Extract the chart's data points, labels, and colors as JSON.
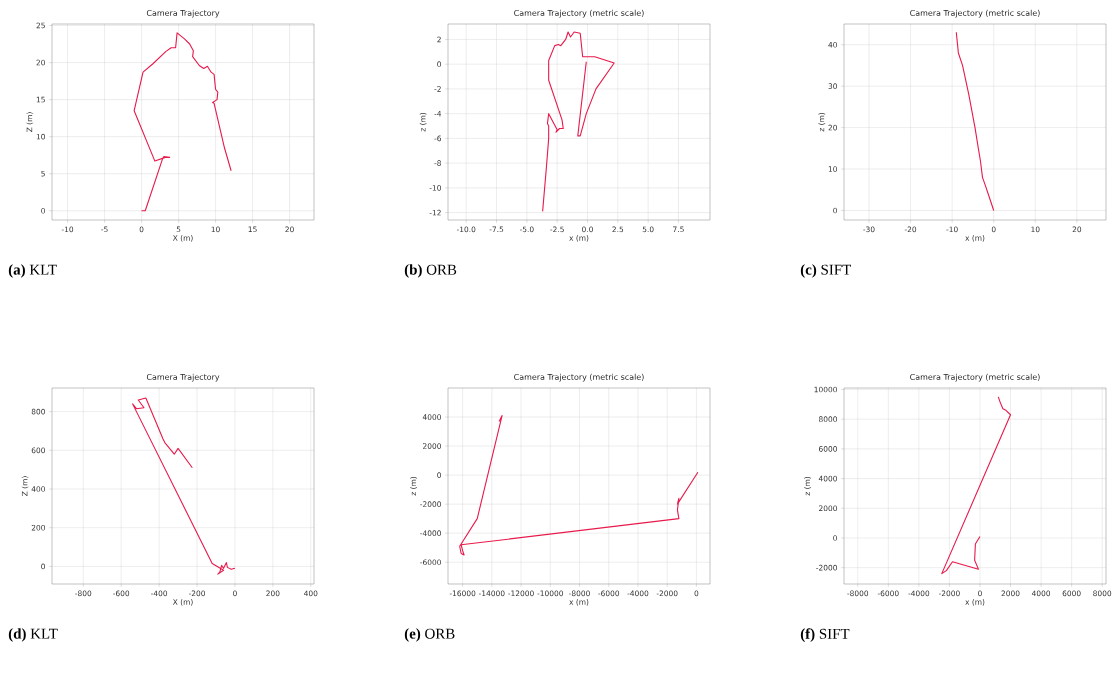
{
  "chart_data": [
    {
      "type": "line",
      "title": "Camera Trajectory",
      "xlabel": "X (m)",
      "ylabel": "Z (m)",
      "annotations": [
        "**(a)** KLT"
      ],
      "grid": true,
      "xlim": [
        -12.1,
        23.3
      ],
      "ylim": [
        -1.25,
        25.2
      ],
      "xticks": [
        -10,
        -5,
        0,
        5,
        10,
        15,
        20
      ],
      "yticks": [
        0,
        5,
        10,
        15,
        20,
        25
      ],
      "series": [
        {
          "color": "#e8194b",
          "x": [
            0,
            0.5,
            2.8,
            3.0,
            3.8,
            3.2,
            1.8,
            -1.0,
            0.2,
            1.5,
            3.3,
            4.0,
            4.6,
            4.8,
            5.8,
            6.5,
            7.0,
            6.9,
            7.8,
            8.4,
            8.9,
            9.4,
            9.8,
            10.0,
            10.3,
            10.2,
            9.6,
            9.8,
            11.2,
            12.1
          ],
          "values": [
            0,
            0,
            6.9,
            7.3,
            7.2,
            7.2,
            6.7,
            13.5,
            18.7,
            19.8,
            21.5,
            22.0,
            22.0,
            24.0,
            23.2,
            22.5,
            21.6,
            20.8,
            19.6,
            19.2,
            19.5,
            18.7,
            18.4,
            16.4,
            16.0,
            15.0,
            14.6,
            14.5,
            8.5,
            5.4
          ]
        }
      ]
    },
    {
      "type": "line",
      "title": "Camera Trajectory (metric scale)",
      "xlabel": "x (m)",
      "ylabel": "z (m)",
      "annotations": [
        "**(b)** ORB"
      ],
      "grid": true,
      "xlim": [
        -11.5,
        10.1
      ],
      "ylim": [
        -12.6,
        3.25
      ],
      "xticks": [
        {
          "value": -10,
          "label": "-10.0"
        },
        {
          "value": -7.5,
          "label": "-7.5"
        },
        {
          "value": -5,
          "label": "-5.0"
        },
        {
          "value": -2.5,
          "label": "-2.5"
        },
        {
          "value": 0,
          "label": "0.0"
        },
        {
          "value": 2.5,
          "label": "2.5"
        },
        {
          "value": 5,
          "label": "5.0"
        },
        {
          "value": 7.5,
          "label": "7.5"
        }
      ],
      "yticks": [
        -12,
        -10,
        -8,
        -6,
        -4,
        -2,
        0,
        2
      ],
      "series": [
        {
          "color": "#e8194b",
          "x": [
            -3.7,
            -3.4,
            -3.2,
            -3.2,
            -3.3,
            -3.2,
            -2.5,
            -2.6,
            -2.3,
            -2.0,
            -2.1,
            -3.2,
            -3.2,
            -2.7,
            -2.4,
            -2.2,
            -1.8,
            -1.6,
            -1.4,
            -1.1,
            -0.6,
            -0.4,
            0.6,
            2.2,
            0.7,
            -0.1,
            -0.6,
            -0.8,
            -0.1
          ],
          "values": [
            -11.9,
            -8.5,
            -6.0,
            -5.0,
            -4.8,
            -4.0,
            -5.3,
            -5.5,
            -5.2,
            -5.2,
            -4.5,
            -1.3,
            0.3,
            1.5,
            1.6,
            1.5,
            2.0,
            2.6,
            2.2,
            2.6,
            2.5,
            0.6,
            0.6,
            0.1,
            -2.0,
            -4.0,
            -5.8,
            -5.8,
            0.2
          ]
        }
      ]
    },
    {
      "type": "line",
      "title": "Camera Trajectory (metric scale)",
      "xlabel": "x (m)",
      "ylabel": "z (m)",
      "annotations": [
        "**(c)** SIFT"
      ],
      "grid": true,
      "xlim": [
        -36,
        27
      ],
      "ylim": [
        -2.3,
        45
      ],
      "xticks": [
        -30,
        -20,
        -10,
        0,
        10,
        20
      ],
      "yticks": [
        0,
        10,
        20,
        30,
        40
      ],
      "series": [
        {
          "color": "#e8194b",
          "x": [
            0,
            -1.0,
            -2.0,
            -2.7,
            -3.2,
            -3.7,
            -4.5,
            -6.0,
            -7.5,
            -8.5,
            -9.0
          ],
          "values": [
            0,
            3,
            6,
            8,
            12,
            15,
            20,
            28,
            35,
            38,
            43
          ]
        }
      ]
    },
    {
      "type": "line",
      "title": "Camera Trajectory",
      "xlabel": "X (m)",
      "ylabel": "Z (m)",
      "annotations": [
        "**(d)** KLT"
      ],
      "grid": true,
      "xlim": [
        -965,
        417
      ],
      "ylim": [
        -91,
        922
      ],
      "xticks": [
        -800,
        -600,
        -400,
        -200,
        0,
        200,
        400
      ],
      "yticks": [
        0,
        200,
        400,
        600,
        800
      ],
      "series": [
        {
          "color": "#e8194b",
          "x": [
            0,
            -20,
            -40,
            -45,
            -60,
            -70,
            -80,
            -90,
            -60,
            -120,
            -540,
            -520,
            -480,
            -510,
            -470,
            -380,
            -370,
            -320,
            -300,
            -225
          ],
          "values": [
            -10,
            -15,
            -5,
            20,
            -10,
            5,
            -30,
            -40,
            -20,
            15,
            840,
            815,
            820,
            860,
            870,
            660,
            640,
            580,
            610,
            510
          ]
        }
      ]
    },
    {
      "type": "line",
      "title": "Camera Trajectory (metric scale)",
      "xlabel": "x (m)",
      "ylabel": "z (m)",
      "annotations": [
        "**(e)** ORB"
      ],
      "grid": true,
      "xlim": [
        -17000,
        930
      ],
      "ylim": [
        -7500,
        6000
      ],
      "xticks": [
        -16000,
        -14000,
        -12000,
        -10000,
        -8000,
        -6000,
        -4000,
        -2000,
        0
      ],
      "yticks": [
        -6000,
        -4000,
        -2000,
        0,
        2000,
        4000
      ],
      "series": [
        {
          "color": "#e8194b",
          "x": [
            100,
            -1300,
            -1200,
            -1300,
            -1200,
            -16100,
            -16000,
            -15900,
            -16100,
            -16200,
            -15000,
            -13300,
            -13500
          ],
          "values": [
            200,
            -2000,
            -1600,
            -2400,
            -3000,
            -4800,
            -5200,
            -5500,
            -5400,
            -4900,
            -3000,
            4100,
            3700
          ]
        }
      ]
    },
    {
      "type": "line",
      "title": "Camera Trajectory (metric scale)",
      "xlabel": "x (m)",
      "ylabel": "z (m)",
      "annotations": [
        "**(f)** SIFT"
      ],
      "grid": true,
      "xlim": [
        -8900,
        8250
      ],
      "ylim": [
        -3100,
        10100
      ],
      "xticks": [
        -8000,
        -6000,
        -4000,
        -2000,
        0,
        2000,
        4000,
        6000,
        8000
      ],
      "yticks": [
        -2000,
        0,
        2000,
        4000,
        6000,
        8000,
        10000
      ],
      "series": [
        {
          "color": "#e8194b",
          "x": [
            0,
            -300,
            -350,
            -100,
            -1800,
            -2200,
            -2500,
            2000,
            1700,
            1500,
            1300,
            1200
          ],
          "values": [
            100,
            -400,
            -1500,
            -2100,
            -1600,
            -2200,
            -2400,
            8300,
            8600,
            8700,
            9200,
            9500
          ]
        }
      ]
    }
  ]
}
